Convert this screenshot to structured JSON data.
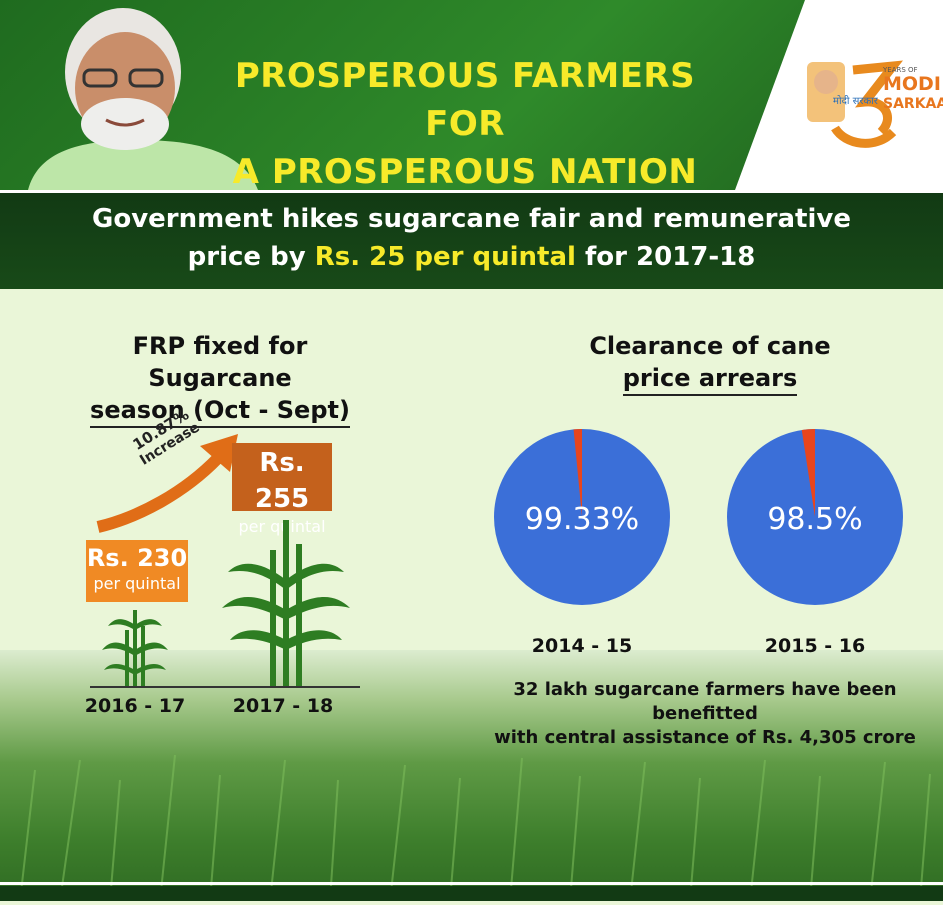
{
  "header": {
    "headline_line1": "PROSPEROUS FARMERS FOR",
    "headline_line2": "A PROSPEROUS NATION",
    "logo": {
      "top": "YEARS OF",
      "main": "MODI",
      "sub": "SARKAAR",
      "devanagari": "मोदी सरकार"
    }
  },
  "subheading": {
    "part1": "Government hikes sugarcane fair and remunerative",
    "part2_pre": "price by ",
    "part2_highlight": "Rs. 25 per quintal",
    "part2_post": " for 2017-18"
  },
  "frp": {
    "title_line1": "FRP fixed for Sugarcane",
    "title_line2": "season (Oct - Sept)",
    "increase_pct": "10.87%",
    "increase_word": "Increase",
    "items": [
      {
        "price": "Rs. 230",
        "unit": "per quintal",
        "year": "2016 - 17",
        "value": 230
      },
      {
        "price": "Rs. 255",
        "unit": "per quintal",
        "year": "2017 - 18",
        "value": 255
      }
    ]
  },
  "arrears": {
    "title_line1": "Clearance of cane",
    "title_line2": "price arrears",
    "pies": [
      {
        "label": "99.33%",
        "year": "2014 - 15",
        "value": 99.33
      },
      {
        "label": "98.5%",
        "year": "2015 - 16",
        "value": 98.5
      }
    ],
    "colors": {
      "cleared": "#3b6fd8",
      "pending": "#e8451d"
    }
  },
  "footnote": {
    "line1": "32 lakh sugarcane farmers have been benefitted",
    "line2": "with central assistance of Rs. 4,305 crore"
  },
  "colors": {
    "accent_yellow": "#f7ea2a",
    "badge_light": "#f08a24",
    "badge_dark": "#c4611c",
    "green": "#2f8a2a"
  }
}
